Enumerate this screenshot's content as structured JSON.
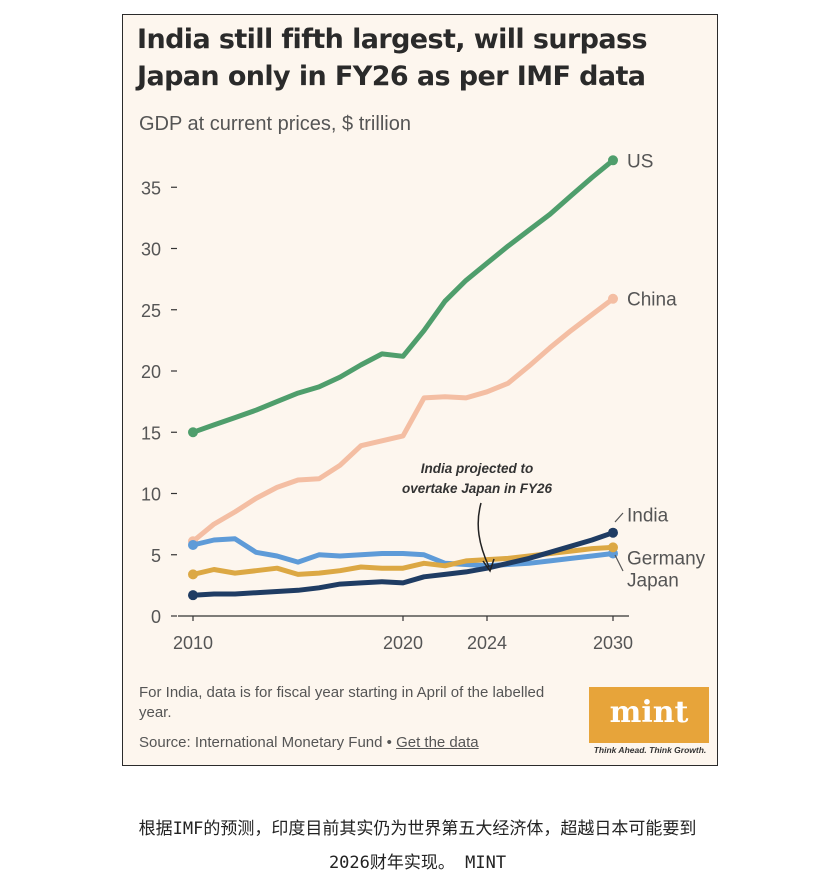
{
  "chart_data": {
    "type": "line",
    "title": "India still fifth largest, will surpass Japan only in FY26 as per IMF data",
    "title_lines": [
      "India still fifth largest, will surpass",
      "Japan only in FY26 as per IMF data"
    ],
    "subtitle": "GDP at current prices, $ trillion",
    "ylim": [
      0,
      38
    ],
    "y_ticks": [
      "0",
      "5",
      "10",
      "15",
      "20",
      "25",
      "30",
      "35"
    ],
    "x_ticks": [
      "2010",
      "2020",
      "2024",
      "2030"
    ],
    "x": [
      2010,
      2011,
      2012,
      2013,
      2014,
      2015,
      2016,
      2017,
      2018,
      2019,
      2020,
      2021,
      2022,
      2023,
      2024,
      2025,
      2026,
      2027,
      2028,
      2029,
      2030
    ],
    "series": [
      {
        "name": "US",
        "color": "#4f9e6c",
        "values": [
          15.0,
          15.6,
          16.2,
          16.8,
          17.5,
          18.2,
          18.7,
          19.5,
          20.5,
          21.4,
          21.2,
          23.3,
          25.7,
          27.4,
          28.8,
          30.2,
          31.5,
          32.8,
          34.3,
          35.8,
          37.2
        ]
      },
      {
        "name": "China",
        "color": "#f4bea3",
        "values": [
          6.1,
          7.5,
          8.5,
          9.6,
          10.5,
          11.1,
          11.2,
          12.3,
          13.9,
          14.3,
          14.7,
          17.8,
          17.9,
          17.8,
          18.3,
          19.0,
          20.4,
          21.9,
          23.3,
          24.6,
          25.9
        ]
      },
      {
        "name": "India",
        "color": "#1f3c63",
        "values": [
          1.7,
          1.8,
          1.8,
          1.9,
          2.0,
          2.1,
          2.3,
          2.6,
          2.7,
          2.8,
          2.7,
          3.2,
          3.4,
          3.6,
          3.9,
          4.3,
          4.7,
          5.2,
          5.7,
          6.2,
          6.8
        ]
      },
      {
        "name": "Germany",
        "color": "#dca844",
        "values": [
          3.4,
          3.8,
          3.5,
          3.7,
          3.9,
          3.4,
          3.5,
          3.7,
          4.0,
          3.9,
          3.9,
          4.3,
          4.1,
          4.5,
          4.6,
          4.7,
          4.9,
          5.1,
          5.3,
          5.5,
          5.6
        ]
      },
      {
        "name": "Japan",
        "color": "#5e9bd8",
        "values": [
          5.8,
          6.2,
          6.3,
          5.2,
          4.9,
          4.4,
          5.0,
          4.9,
          5.0,
          5.1,
          5.1,
          5.0,
          4.3,
          4.2,
          4.1,
          4.2,
          4.3,
          4.5,
          4.7,
          4.9,
          5.1
        ]
      }
    ],
    "annotation": {
      "lines": [
        "India projected to",
        "overtake Japan in FY26"
      ]
    },
    "grid": false,
    "legend": "direct labels at line ends"
  },
  "footer": {
    "note": "For India, data is for fiscal year starting in April of the labelled year.",
    "source_prefix": "Source: International Monetary Fund • ",
    "source_link": "Get the data"
  },
  "logo": {
    "text": "mint",
    "tagline": "Think Ahead. Think Growth.",
    "color": "#e7a43a"
  },
  "caption": {
    "line1": "根据IMF的预测，印度目前其实仍为世界第五大经济体，超越日本可能要到",
    "line2": "2026财年实现。  MINT"
  }
}
